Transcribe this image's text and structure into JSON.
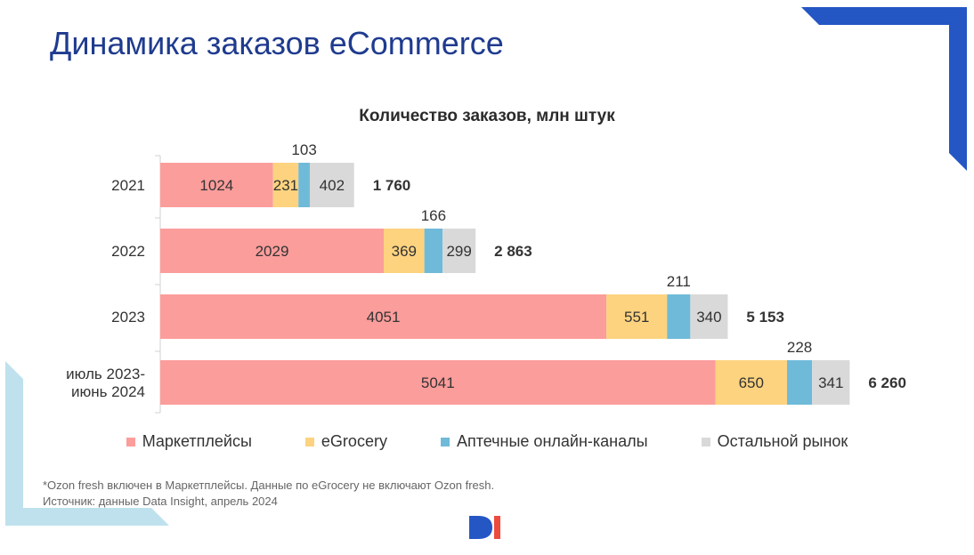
{
  "slide": {
    "title": "Динамика заказов eCommerce",
    "footnote_1": "*Ozon fresh включен в Маркетплейсы. Данные по eGrocery не включают Ozon fresh.",
    "footnote_2": "Источник: данные Data Insight, апрель 2024"
  },
  "colors": {
    "title": "#1f3b8f",
    "deco_dark": "#2456c4",
    "deco_light": "#bfe1ee",
    "logo_blue": "#2456c4",
    "logo_red": "#ec4b3e"
  },
  "chart_data": {
    "type": "bar",
    "orientation": "horizontal",
    "stacked": true,
    "title": "Количество заказов, млн штук",
    "categories": [
      "2021",
      "2022",
      "2023",
      "июль 2023-\nиюнь 2024"
    ],
    "series": [
      {
        "name": "Маркетплейсы",
        "color": "#fb9d9b",
        "values": [
          1024,
          2029,
          4051,
          5041
        ]
      },
      {
        "name": "eGrocery",
        "color": "#fdd37f",
        "values": [
          231,
          369,
          551,
          650
        ]
      },
      {
        "name": "Аптечные онлайн-каналы",
        "color": "#6fbad9",
        "values": [
          103,
          166,
          211,
          228
        ]
      },
      {
        "name": "Остальной рынок",
        "color": "#d9d9d9",
        "values": [
          402,
          299,
          340,
          341
        ]
      }
    ],
    "totals": [
      "1 760",
      "2 863",
      "5 153",
      "6 260"
    ],
    "legend_position": "bottom",
    "grid": false
  }
}
